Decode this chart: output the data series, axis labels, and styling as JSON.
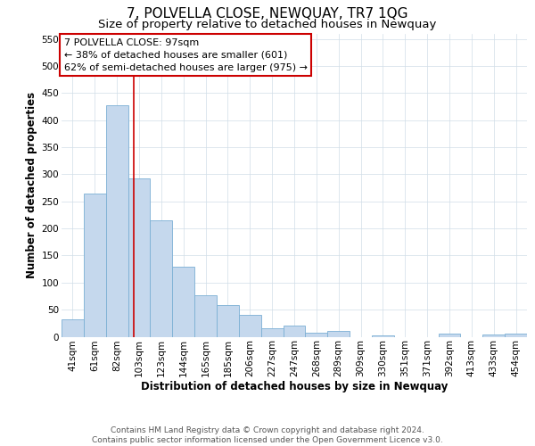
{
  "title": "7, POLVELLA CLOSE, NEWQUAY, TR7 1QG",
  "subtitle": "Size of property relative to detached houses in Newquay",
  "xlabel": "Distribution of detached houses by size in Newquay",
  "ylabel": "Number of detached properties",
  "bar_labels": [
    "41sqm",
    "61sqm",
    "82sqm",
    "103sqm",
    "123sqm",
    "144sqm",
    "165sqm",
    "185sqm",
    "206sqm",
    "227sqm",
    "247sqm",
    "268sqm",
    "289sqm",
    "309sqm",
    "330sqm",
    "351sqm",
    "371sqm",
    "392sqm",
    "413sqm",
    "433sqm",
    "454sqm"
  ],
  "bar_values": [
    32,
    265,
    428,
    293,
    215,
    130,
    76,
    59,
    40,
    15,
    20,
    7,
    10,
    0,
    3,
    0,
    0,
    5,
    0,
    4,
    5
  ],
  "bar_color": "#c5d8ed",
  "bar_edge_color": "#7bafd4",
  "vline_color": "#cc0000",
  "ylim": [
    0,
    560
  ],
  "yticks": [
    0,
    50,
    100,
    150,
    200,
    250,
    300,
    350,
    400,
    450,
    500,
    550
  ],
  "annotation_title": "7 POLVELLA CLOSE: 97sqm",
  "annotation_line1": "← 38% of detached houses are smaller (601)",
  "annotation_line2": "62% of semi-detached houses are larger (975) →",
  "annotation_box_color": "#ffffff",
  "annotation_box_edge": "#cc0000",
  "footer_line1": "Contains HM Land Registry data © Crown copyright and database right 2024.",
  "footer_line2": "Contains public sector information licensed under the Open Government Licence v3.0.",
  "title_fontsize": 11,
  "subtitle_fontsize": 9.5,
  "axis_label_fontsize": 8.5,
  "tick_fontsize": 7.5,
  "annotation_fontsize": 8,
  "footer_fontsize": 6.5,
  "background_color": "#ffffff",
  "grid_color": "#d0dde8"
}
